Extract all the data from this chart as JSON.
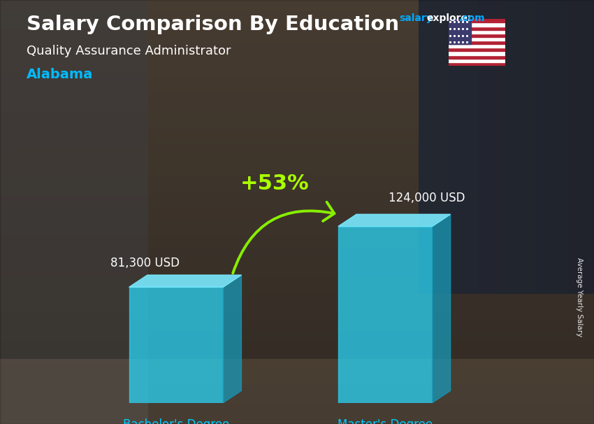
{
  "title_main": "Salary Comparison By Education",
  "subtitle": "Quality Assurance Administrator",
  "location": "Alabama",
  "categories": [
    "Bachelor's Degree",
    "Master's Degree"
  ],
  "values": [
    81300,
    124000
  ],
  "value_labels": [
    "81,300 USD",
    "124,000 USD"
  ],
  "pct_change": "+53%",
  "bar_color_face": "#2ad4f5",
  "bar_color_top": "#7aeaff",
  "bar_color_right": "#1899b8",
  "bar_alpha": 0.75,
  "bg_colors": [
    "#6b5a4e",
    "#4a4540",
    "#3a3530",
    "#5a4a40",
    "#7a6a5a"
  ],
  "title_color": "#ffffff",
  "subtitle_color": "#ffffff",
  "location_color": "#00bbff",
  "label_color": "#ffffff",
  "xlabel_color": "#00ccff",
  "pct_color": "#aaff00",
  "arrow_color": "#88ee00",
  "side_label": "Average Yearly Salary",
  "ylim": [
    0,
    155000
  ],
  "salary_color": "#00aaff",
  "explorer_color": "#ffffff",
  "com_color": "#00aaff"
}
